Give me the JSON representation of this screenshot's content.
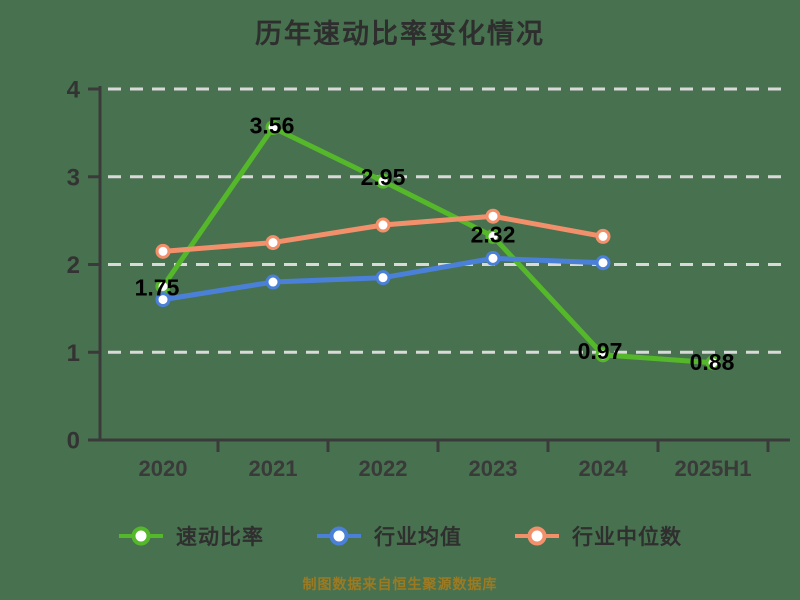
{
  "title": "历年速动比率变化情况",
  "footer": "制图数据来自恒生聚源数据库",
  "colors": {
    "background": "#48714F",
    "title": "#2E2E2E",
    "axis": "#3A3A3A",
    "grid": "#D9D9D9",
    "data_label": "#000000",
    "footer_text": "#9C7A22",
    "marker_fill": "#FFFFFF"
  },
  "chart_data": {
    "type": "line",
    "title": "历年速动比率变化情况",
    "categories": [
      "2020",
      "2021",
      "2022",
      "2023",
      "2024",
      "2025H1"
    ],
    "xlabel": "",
    "ylabel": "",
    "ylim": [
      0,
      4
    ],
    "yticks": [
      0,
      1,
      2,
      3,
      4
    ],
    "grid": "horizontal-dashed",
    "legend_position": "bottom",
    "series": [
      {
        "name": "速动比率",
        "color": "#55B82A",
        "values": [
          1.75,
          3.56,
          2.95,
          2.32,
          0.97,
          0.88
        ],
        "labels": [
          {
            "text": "1.75",
            "dx": -6,
            "dy": 1
          },
          {
            "text": "3.56",
            "dx": -1,
            "dy": -2
          },
          {
            "text": "2.95",
            "dx": 0,
            "dy": -4
          },
          {
            "text": "2.32",
            "dx": 0,
            "dy": -2
          },
          {
            "text": "0.97",
            "dx": -3,
            "dy": -4
          },
          {
            "text": "0.88",
            "dx": -1,
            "dy": -1
          }
        ]
      },
      {
        "name": "行业均值",
        "color": "#4B80D8",
        "values": [
          1.6,
          1.8,
          1.85,
          2.07,
          2.02,
          null
        ],
        "labels": []
      },
      {
        "name": "行业中位数",
        "color": "#F2906B",
        "values": [
          2.15,
          2.25,
          2.45,
          2.55,
          2.32,
          null
        ],
        "labels": []
      }
    ]
  }
}
